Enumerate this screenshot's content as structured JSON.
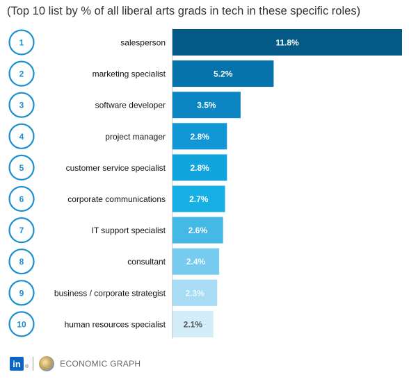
{
  "title": "(Top 10 list by % of all liberal arts grads in tech in these specific roles)",
  "footer": {
    "logo_text": "in",
    "logo_mark": "®",
    "brand": "ECONOMIC GRAPH",
    "icons": [
      "linkedin-logo-icon",
      "globe-icon"
    ]
  },
  "chart_data": {
    "type": "bar",
    "orientation": "horizontal",
    "title": "(Top 10 list by % of all liberal arts grads in tech in these specific roles)",
    "xlabel": "",
    "ylabel": "",
    "xlim": [
      0,
      11.8
    ],
    "grid": false,
    "legend": "none",
    "ranks": [
      "1",
      "2",
      "3",
      "4",
      "5",
      "6",
      "7",
      "8",
      "9",
      "10"
    ],
    "categories": [
      "salesperson",
      "marketing specialist",
      "software developer",
      "project manager",
      "customer service specialist",
      "corporate communications",
      "IT support specialist",
      "consultant",
      "business / corporate strategist",
      "human resources specialist"
    ],
    "values": [
      11.8,
      5.2,
      3.5,
      2.8,
      2.8,
      2.7,
      2.6,
      2.4,
      2.3,
      2.1
    ],
    "value_labels": [
      "11.8%",
      "5.2%",
      "3.5%",
      "2.8%",
      "2.8%",
      "2.7%",
      "2.6%",
      "2.4%",
      "2.3%",
      "2.1%"
    ],
    "colors": [
      "#045a86",
      "#0674ab",
      "#0b86c3",
      "#1197d6",
      "#12a4dd",
      "#17b0e4",
      "#44b9e6",
      "#76cbee",
      "#a8dcf4",
      "#d3edf9"
    ],
    "label_colors": [
      "#ffffff",
      "#ffffff",
      "#ffffff",
      "#ffffff",
      "#ffffff",
      "#ffffff",
      "#ffffff",
      "#f2fbff",
      "#eef9ff",
      "#555555"
    ],
    "rank_circle_color": "#1a8fcf"
  }
}
